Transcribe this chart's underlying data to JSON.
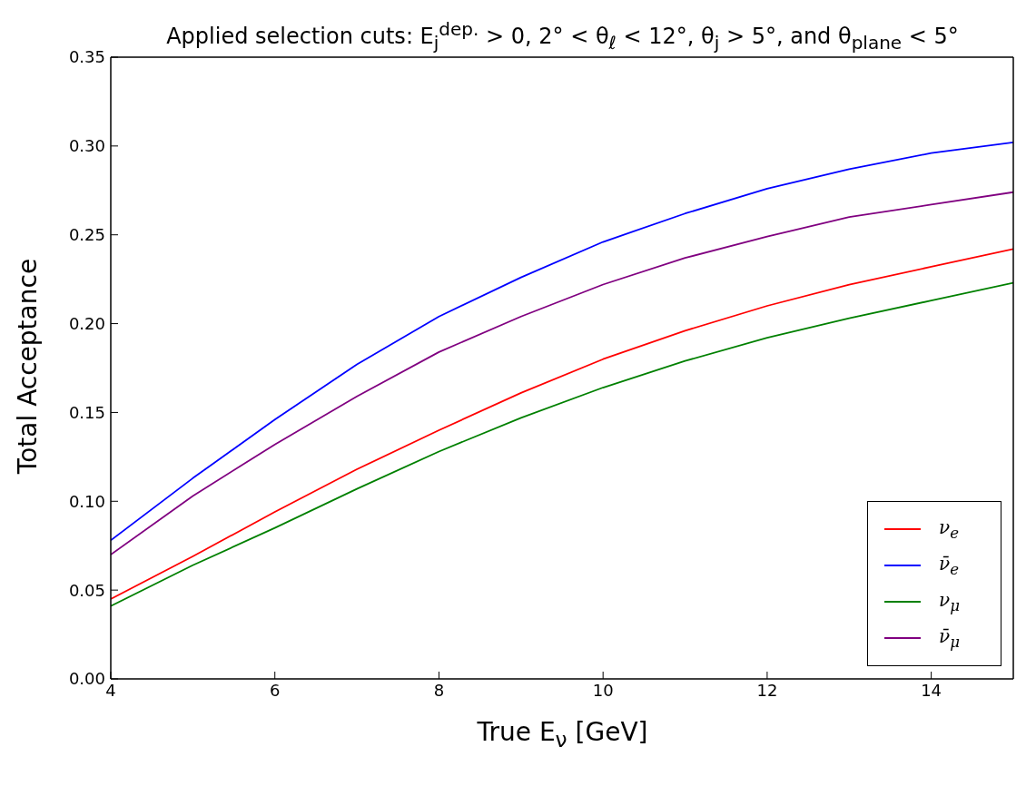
{
  "chart_data": {
    "type": "line",
    "title": "Applied selection cuts: E$_{j}$$^{dep.}$ > 0, 2° < θ$_{ℓ}$ < 12°, θ$_{j}$ > 5°, and θ$_{plane}$ < 5°",
    "xlabel": "True E$_{ν}$ [GeV]",
    "ylabel": "Total Acceptance",
    "x": [
      4,
      5,
      6,
      7,
      8,
      9,
      10,
      11,
      12,
      13,
      14,
      15
    ],
    "series": [
      {
        "name": "ν$_{e}$",
        "color": "#ff0000",
        "values": [
          0.045,
          0.069,
          0.094,
          0.118,
          0.14,
          0.161,
          0.18,
          0.196,
          0.21,
          0.222,
          0.232,
          0.242
        ]
      },
      {
        "name": "ν̄$_{e}$",
        "color": "#0000ff",
        "values": [
          0.078,
          0.113,
          0.146,
          0.177,
          0.204,
          0.226,
          0.246,
          0.262,
          0.276,
          0.287,
          0.296,
          0.302
        ]
      },
      {
        "name": "ν$_{μ}$",
        "color": "#008000",
        "values": [
          0.041,
          0.064,
          0.085,
          0.107,
          0.128,
          0.147,
          0.164,
          0.179,
          0.192,
          0.203,
          0.213,
          0.223
        ]
      },
      {
        "name": "ν̄$_{μ}$",
        "color": "#800080",
        "values": [
          0.07,
          0.103,
          0.132,
          0.159,
          0.184,
          0.204,
          0.222,
          0.237,
          0.249,
          0.26,
          0.267,
          0.274
        ]
      }
    ],
    "xlim": [
      4,
      15
    ],
    "xticks": [
      4,
      6,
      8,
      10,
      12,
      14
    ],
    "ylim": [
      0,
      0.35
    ],
    "yticks": [
      {
        "value": 0,
        "label": "0.00"
      },
      {
        "value": 0.05,
        "label": "0.05"
      },
      {
        "value": 0.1,
        "label": "0.10"
      },
      {
        "value": 0.15,
        "label": "0.15"
      },
      {
        "value": 0.2,
        "label": "0.20"
      },
      {
        "value": 0.25,
        "label": "0.25"
      },
      {
        "value": 0.3,
        "label": "0.30"
      },
      {
        "value": 0.35,
        "label": "0.35"
      }
    ],
    "grid": false,
    "legend": "bottom right",
    "marker": "none",
    "line_style": "solid"
  }
}
